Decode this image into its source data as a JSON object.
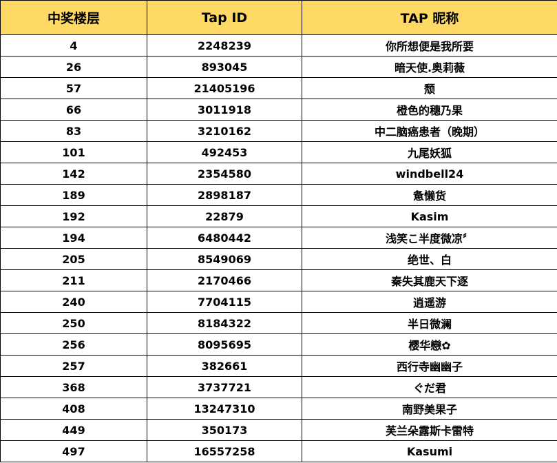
{
  "table": {
    "header": [
      "中奖楼层",
      "Tap ID",
      "TAP 昵称"
    ],
    "rows": [
      [
        4,
        2248239,
        "你所想便是我所要"
      ],
      [
        26,
        893045,
        "暗天使.奥莉薇"
      ],
      [
        57,
        21405196,
        "颓"
      ],
      [
        66,
        3011918,
        "橙色的穗乃果"
      ],
      [
        83,
        3210162,
        "中二脑癌患者（晚期）"
      ],
      [
        101,
        492453,
        "九尾妖狐"
      ],
      [
        142,
        2354580,
        "windbell24"
      ],
      [
        189,
        2898187,
        "惫懒货"
      ],
      [
        192,
        22879,
        "Kasim"
      ],
      [
        194,
        6480442,
        "浅笑こ半度微凉〞"
      ],
      [
        205,
        8549069,
        "绝世、白"
      ],
      [
        211,
        2170466,
        "秦失其鹿天下逐"
      ],
      [
        240,
        7704115,
        "逍遥游"
      ],
      [
        250,
        8184322,
        "半日微澜"
      ],
      [
        256,
        8095695,
        "樱华戀✿"
      ],
      [
        257,
        382661,
        "西行寺幽幽子"
      ],
      [
        368,
        3737721,
        "ぐだ君"
      ],
      [
        408,
        13247310,
        "南野美果子"
      ],
      [
        449,
        350173,
        "芙兰朵露斯卡雷特"
      ],
      [
        497,
        16557258,
        "Kasumi"
      ]
    ]
  }
}
